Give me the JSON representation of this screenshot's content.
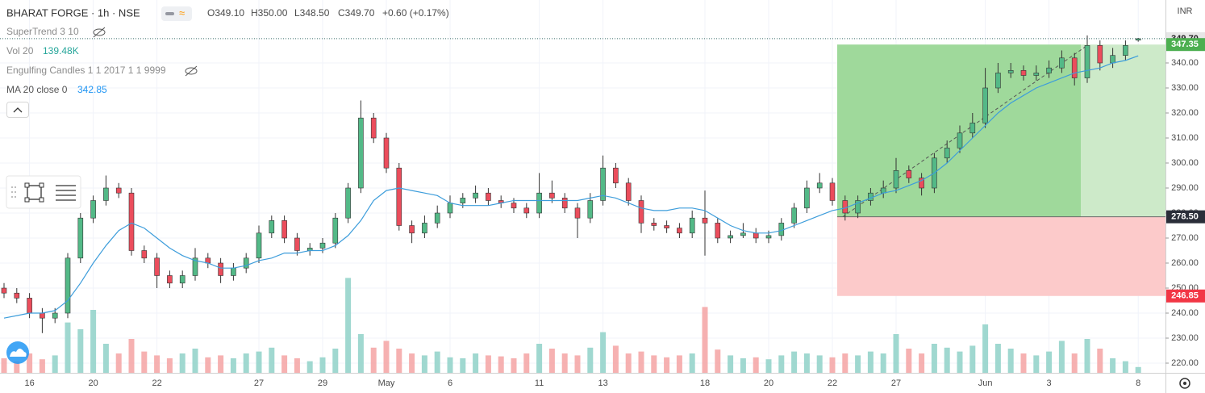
{
  "chart_data": {
    "type": "candlestick",
    "title": "BHARAT FORGE · 1h · NSE",
    "ohlc_readout": [
      "O349.10",
      "H350.00",
      "L348.50",
      "C349.70",
      "+0.60 (+0.17%)"
    ],
    "indicators": [
      {
        "name": "SuperTrend 3 10"
      },
      {
        "name": "Vol 20",
        "value": "139.48K"
      },
      {
        "name": "Engulfing Candles 1 1 2017 1 1 9999"
      },
      {
        "name": "MA 20 close 0",
        "value": 342.85
      }
    ],
    "currency": "INR",
    "up_color": "#53b987",
    "down_color": "#eb4d5c",
    "ma_color": "#3d9ddb",
    "categories": [
      null,
      null,
      "16",
      null,
      null,
      null,
      null,
      "20",
      null,
      null,
      null,
      null,
      "22",
      null,
      null,
      null,
      null,
      null,
      null,
      null,
      "27",
      null,
      null,
      null,
      null,
      "29",
      null,
      null,
      null,
      null,
      "May",
      null,
      null,
      null,
      null,
      "6",
      null,
      null,
      null,
      null,
      null,
      null,
      "11",
      null,
      null,
      null,
      null,
      "13",
      null,
      null,
      null,
      null,
      null,
      null,
      null,
      "18",
      null,
      null,
      null,
      null,
      "20",
      null,
      null,
      null,
      null,
      "22",
      null,
      null,
      null,
      null,
      "27",
      null,
      null,
      null,
      null,
      null,
      null,
      "Jun",
      null,
      null,
      null,
      null,
      "3",
      null,
      null,
      null,
      null,
      null,
      null,
      "8"
    ],
    "ohlc": [
      [
        250,
        252,
        246,
        248
      ],
      [
        248,
        250,
        244,
        246
      ],
      [
        246,
        248,
        238,
        240
      ],
      [
        240,
        242,
        232,
        238
      ],
      [
        238,
        242,
        236,
        240
      ],
      [
        240,
        264,
        238,
        262
      ],
      [
        262,
        280,
        260,
        278
      ],
      [
        278,
        287,
        276,
        285
      ],
      [
        285,
        295,
        283,
        290
      ],
      [
        290,
        292,
        286,
        288
      ],
      [
        288,
        290,
        263,
        265
      ],
      [
        265,
        267,
        260,
        262
      ],
      [
        262,
        264,
        250,
        255
      ],
      [
        255,
        257,
        250,
        252
      ],
      [
        252,
        257,
        250,
        255
      ],
      [
        255,
        266,
        253,
        262
      ],
      [
        262,
        264,
        258,
        260
      ],
      [
        260,
        262,
        252,
        255
      ],
      [
        255,
        260,
        253,
        258
      ],
      [
        258,
        264,
        256,
        262
      ],
      [
        262,
        275,
        260,
        272
      ],
      [
        272,
        279,
        270,
        277
      ],
      [
        277,
        279,
        268,
        270
      ],
      [
        270,
        272,
        263,
        265
      ],
      [
        265,
        268,
        263,
        266
      ],
      [
        266,
        270,
        264,
        268
      ],
      [
        268,
        280,
        266,
        278
      ],
      [
        278,
        292,
        276,
        290
      ],
      [
        290,
        325,
        288,
        318
      ],
      [
        318,
        320,
        308,
        310
      ],
      [
        310,
        312,
        296,
        298
      ],
      [
        298,
        300,
        273,
        275
      ],
      [
        275,
        277,
        268,
        272
      ],
      [
        272,
        279,
        270,
        276
      ],
      [
        276,
        283,
        274,
        280
      ],
      [
        280,
        287,
        278,
        284
      ],
      [
        284,
        288,
        282,
        286
      ],
      [
        286,
        291,
        284,
        288
      ],
      [
        288,
        290,
        283,
        285
      ],
      [
        285,
        287,
        282,
        284
      ],
      [
        284,
        286,
        280,
        282
      ],
      [
        282,
        284,
        278,
        280
      ],
      [
        280,
        296,
        278,
        288
      ],
      [
        288,
        293,
        284,
        286
      ],
      [
        286,
        288,
        280,
        282
      ],
      [
        282,
        284,
        270,
        278
      ],
      [
        278,
        288,
        276,
        285
      ],
      [
        285,
        303,
        283,
        298
      ],
      [
        298,
        300,
        290,
        292
      ],
      [
        292,
        294,
        283,
        285
      ],
      [
        285,
        287,
        272,
        276
      ],
      [
        276,
        278,
        273,
        275
      ],
      [
        275,
        277,
        272,
        274
      ],
      [
        274,
        276,
        270,
        272
      ],
      [
        272,
        281,
        270,
        278
      ],
      [
        278,
        289,
        263,
        276
      ],
      [
        276,
        278,
        268,
        270
      ],
      [
        270,
        273,
        268,
        271
      ],
      [
        271,
        276,
        270,
        272
      ],
      [
        272,
        274,
        268,
        270
      ],
      [
        270,
        273,
        268,
        271
      ],
      [
        271,
        278,
        269,
        276
      ],
      [
        276,
        284,
        274,
        282
      ],
      [
        282,
        293,
        280,
        290
      ],
      [
        290,
        296,
        288,
        292
      ],
      [
        292,
        294,
        283,
        285
      ],
      [
        285,
        287,
        277,
        280
      ],
      [
        280,
        287,
        278,
        285
      ],
      [
        285,
        290,
        283,
        288
      ],
      [
        288,
        293,
        286,
        290
      ],
      [
        290,
        302,
        288,
        297
      ],
      [
        297,
        299,
        292,
        294
      ],
      [
        294,
        296,
        287,
        290
      ],
      [
        290,
        304,
        288,
        302
      ],
      [
        302,
        309,
        300,
        306
      ],
      [
        306,
        315,
        304,
        312
      ],
      [
        312,
        320,
        310,
        316
      ],
      [
        316,
        338,
        314,
        330
      ],
      [
        330,
        340,
        328,
        336
      ],
      [
        336,
        340,
        334,
        337
      ],
      [
        337,
        339,
        333,
        335
      ],
      [
        335,
        339,
        333,
        336
      ],
      [
        336,
        341,
        334,
        338
      ],
      [
        338,
        345,
        336,
        342
      ],
      [
        342,
        344,
        331,
        334
      ],
      [
        334,
        351,
        332,
        347
      ],
      [
        347,
        349,
        337,
        340
      ],
      [
        340,
        346,
        338,
        343
      ],
      [
        343,
        349,
        341,
        347
      ],
      [
        349.1,
        350,
        348.5,
        349.7
      ]
    ],
    "volume": [
      150,
      120,
      200,
      140,
      180,
      520,
      450,
      650,
      300,
      200,
      350,
      220,
      180,
      150,
      200,
      250,
      160,
      180,
      150,
      200,
      220,
      260,
      180,
      150,
      120,
      160,
      250,
      980,
      400,
      260,
      330,
      250,
      200,
      180,
      220,
      160,
      150,
      200,
      180,
      170,
      150,
      200,
      300,
      250,
      200,
      180,
      260,
      420,
      280,
      200,
      220,
      180,
      160,
      180,
      200,
      680,
      240,
      180,
      150,
      160,
      140,
      180,
      220,
      200,
      180,
      160,
      200,
      180,
      220,
      200,
      400,
      250,
      200,
      300,
      260,
      220,
      280,
      500,
      300,
      250,
      200,
      180,
      220,
      330,
      200,
      350,
      250,
      150,
      120,
      60
    ],
    "ma": [
      238,
      239,
      240,
      240,
      241,
      245,
      252,
      260,
      267,
      273,
      276,
      274,
      270,
      266,
      263,
      261,
      260,
      258,
      258,
      259,
      261,
      262,
      264,
      264,
      265,
      265,
      267,
      271,
      277,
      285,
      289,
      290,
      289,
      288,
      287,
      284,
      283,
      283,
      283,
      284,
      285,
      285,
      285,
      285,
      285,
      285,
      286,
      287,
      286,
      284,
      282,
      281,
      281,
      282,
      282,
      281,
      278,
      275,
      273,
      272,
      272,
      273,
      275,
      277,
      279,
      281,
      282,
      284,
      286,
      288,
      289,
      291,
      293,
      296,
      300,
      305,
      310,
      315,
      320,
      324,
      327,
      330,
      332,
      334,
      336,
      337,
      338,
      340,
      341,
      342.85
    ],
    "ylim": [
      216.13,
      365.16
    ],
    "y2lim": [
      0,
      3850
    ],
    "yticks": [
      {
        "value": 220,
        "label": "220.00"
      },
      {
        "value": 230,
        "label": "230.00"
      },
      {
        "value": 240,
        "label": "240.00"
      },
      {
        "value": 250,
        "label": "250.00"
      },
      {
        "value": 260,
        "label": "260.00"
      },
      {
        "value": 270,
        "label": "270.00"
      },
      {
        "value": 280,
        "label": "280.00"
      },
      {
        "value": 290,
        "label": "290.00"
      },
      {
        "value": 300,
        "label": "300.00"
      },
      {
        "value": 310,
        "label": "310.00"
      },
      {
        "value": 320,
        "label": "320.00"
      },
      {
        "value": 330,
        "label": "330.00"
      },
      {
        "value": 340,
        "label": "340.00"
      }
    ],
    "grid": true,
    "last_price": {
      "value": 349.7,
      "label": "349.70"
    },
    "position": {
      "entry": {
        "value": 278.5,
        "label": "278.50"
      },
      "target": 347.35,
      "stop": 246.85
    }
  }
}
